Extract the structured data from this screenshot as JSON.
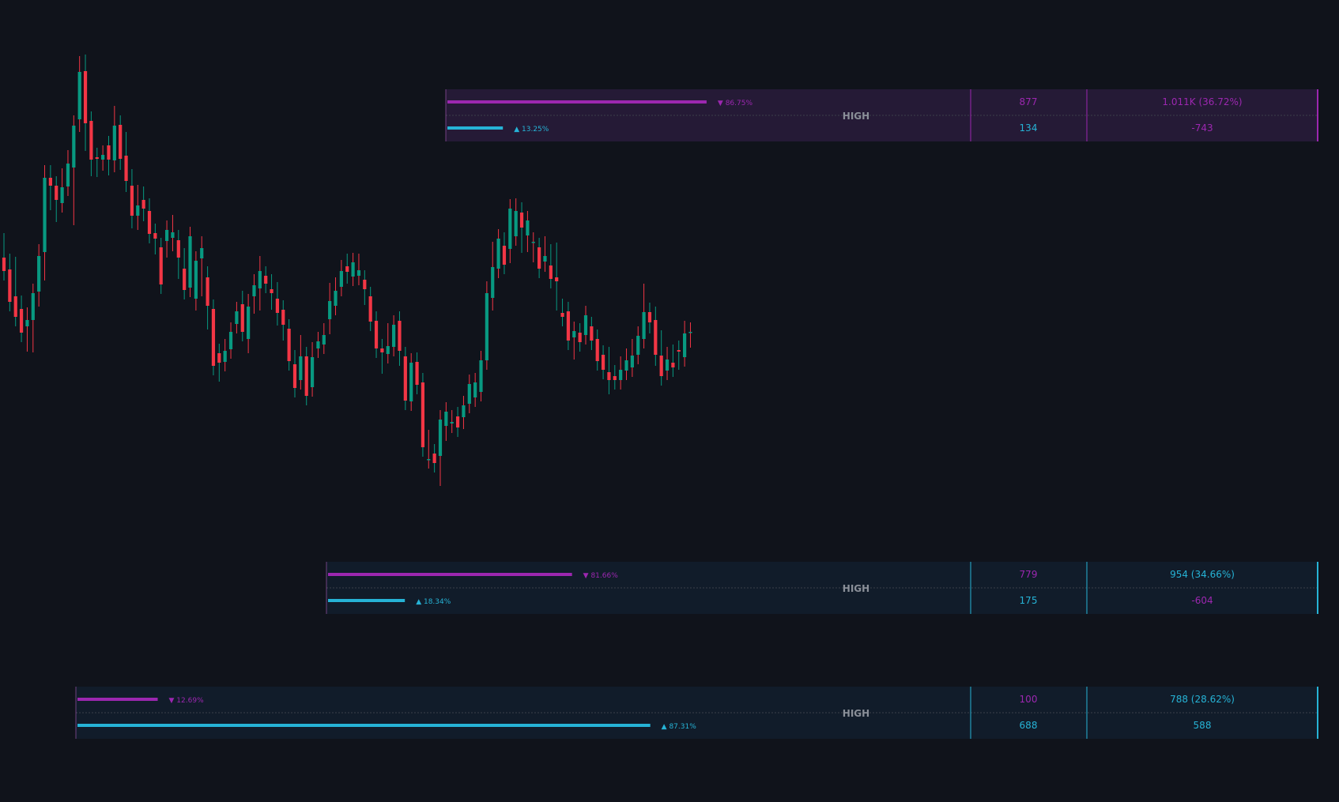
{
  "chart_data": {
    "type": "candlestick",
    "title": "",
    "xlabel": "",
    "ylabel": "",
    "colors": {
      "background": "#10131b",
      "up": "#089981",
      "down": "#f23645",
      "sell": "#9c27b0",
      "buy": "#26b3d6",
      "band_purple": "#251a36",
      "band_blue": "#111c2a",
      "muted_text": "#8a8f98"
    },
    "candles": [
      [
        685,
        668,
        704,
        670
      ],
      [
        670,
        629,
        678,
        634
      ],
      [
        636,
        610,
        674,
        620
      ],
      [
        620,
        590,
        625,
        597
      ],
      [
        598,
        606,
        578,
        610
      ],
      [
        606,
        640,
        577,
        640
      ],
      [
        642,
        687,
        635,
        690
      ],
      [
        692,
        786,
        668,
        790
      ],
      [
        786,
        776,
        790,
        757
      ],
      [
        776,
        758,
        768,
        742
      ],
      [
        754,
        774,
        765,
        786
      ],
      [
        775,
        804,
        778,
        809
      ],
      [
        799,
        852,
        738,
        853
      ],
      [
        860,
        920,
        856,
        928
      ],
      [
        921,
        855,
        930,
        832
      ],
      [
        858,
        809,
        852,
        800
      ],
      [
        812,
        810,
        802,
        799
      ],
      [
        809,
        815,
        807,
        808
      ],
      [
        827,
        809,
        801,
        818
      ],
      [
        808,
        852,
        805,
        865
      ],
      [
        853,
        810,
        851,
        808
      ],
      [
        814,
        782,
        832,
        780
      ],
      [
        776,
        738,
        785,
        734
      ],
      [
        738,
        751,
        732,
        765
      ],
      [
        758,
        747,
        763,
        743
      ],
      [
        744,
        715,
        748,
        722
      ],
      [
        716,
        709,
        701,
        707
      ],
      [
        698,
        651,
        670,
        660
      ],
      [
        706,
        720,
        710,
        697
      ],
      [
        710,
        717,
        727,
        705
      ],
      [
        707,
        685,
        708,
        670
      ],
      [
        671,
        644,
        685,
        668
      ],
      [
        647,
        712,
        673,
        649
      ],
      [
        633,
        681,
        648,
        630
      ],
      [
        684,
        697,
        648,
        700
      ],
      [
        660,
        624,
        606,
        662
      ],
      [
        620,
        548,
        615,
        560
      ],
      [
        564,
        552,
        560,
        540
      ],
      [
        553,
        567,
        570,
        560
      ],
      [
        569,
        591,
        582,
        588
      ],
      [
        601,
        617,
        609,
        612
      ],
      [
        626,
        591,
        631,
        593
      ],
      [
        582,
        623,
        576,
        627
      ],
      [
        636,
        650,
        652,
        626
      ],
      [
        646,
        668,
        630,
        675
      ],
      [
        662,
        652,
        657,
        658
      ],
      [
        645,
        640,
        631,
        652
      ],
      [
        633,
        615,
        611,
        642
      ],
      [
        619,
        600,
        592,
        592
      ],
      [
        595,
        554,
        575,
        556
      ],
      [
        550,
        520,
        556,
        535
      ],
      [
        530,
        560,
        575,
        560
      ],
      [
        560,
        510,
        528,
        515
      ],
      [
        521,
        559,
        525,
        566
      ],
      [
        570,
        579,
        575,
        575
      ],
      [
        575,
        587,
        590,
        585
      ],
      [
        607,
        630,
        600,
        641
      ],
      [
        624,
        643,
        638,
        648
      ],
      [
        648,
        668,
        656,
        670
      ],
      [
        674,
        667,
        664,
        678
      ],
      [
        661,
        679,
        674,
        665
      ],
      [
        662,
        669,
        665,
        678
      ],
      [
        657,
        645,
        637,
        643
      ],
      [
        636,
        604,
        619,
        609
      ],
      [
        605,
        570,
        592,
        580
      ],
      [
        570,
        565,
        550,
        560
      ],
      [
        563,
        573,
        570,
        590
      ],
      [
        572,
        600,
        586,
        598
      ],
      [
        605,
        567,
        565,
        560
      ],
      [
        560,
        504,
        530,
        513
      ],
      [
        503,
        552,
        515,
        552
      ],
      [
        553,
        524,
        526,
        527
      ],
      [
        527,
        445,
        490,
        455
      ],
      [
        430,
        430,
        455,
        453
      ],
      [
        437,
        425,
        433,
        430
      ],
      [
        434,
        480,
        408,
        470
      ],
      [
        472,
        490,
        465,
        470
      ],
      [
        475,
        477,
        477,
        480
      ],
      [
        484,
        470,
        479,
        480
      ],
      [
        483,
        498,
        480,
        490
      ],
      [
        500,
        525,
        500,
        510
      ],
      [
        508,
        527,
        520,
        524
      ],
      [
        515,
        555,
        553,
        550
      ],
      [
        555,
        640,
        643,
        630
      ],
      [
        634,
        673,
        693,
        630
      ],
      [
        671,
        709,
        696,
        690
      ],
      [
        700,
        676,
        688,
        705
      ],
      [
        696,
        747,
        710,
        690
      ],
      [
        712,
        744,
        723,
        748
      ],
      [
        742,
        723,
        743,
        703
      ],
      [
        713,
        732,
        720,
        704
      ],
      [
        704,
        705,
        691,
        700
      ],
      [
        698,
        671,
        680,
        672
      ],
      [
        680,
        687,
        700,
        679
      ],
      [
        675,
        658,
        690,
        660
      ],
      [
        660,
        655,
        692,
        630
      ],
      [
        615,
        610,
        621,
        617
      ],
      [
        617,
        580,
        600,
        583
      ],
      [
        584,
        592,
        568,
        590
      ],
      [
        590,
        578,
        583,
        582
      ],
      [
        587,
        612,
        596,
        600
      ],
      [
        598,
        580,
        595,
        590
      ],
      [
        582,
        554,
        565,
        560
      ],
      [
        562,
        543,
        550,
        551
      ],
      [
        540,
        530,
        560,
        524
      ],
      [
        535,
        530,
        537,
        532
      ],
      [
        530,
        543,
        548,
        542
      ],
      [
        542,
        555,
        557,
        558
      ],
      [
        546,
        561,
        559,
        570
      ],
      [
        562,
        586,
        582,
        570
      ],
      [
        582,
        616,
        640,
        610
      ],
      [
        616,
        603,
        610,
        601
      ],
      [
        606,
        562,
        611,
        560
      ],
      [
        561,
        535,
        581,
        536
      ],
      [
        542,
        556,
        557,
        560
      ],
      [
        552,
        546,
        563,
        562
      ],
      [
        568,
        566,
        555,
        560
      ],
      [
        559,
        589,
        564,
        593
      ],
      [
        590,
        591,
        583,
        590
      ]
    ],
    "levels": [
      {
        "band_color": "purple",
        "label": "HIGH",
        "sell_pct": "▼ 86.75%",
        "buy_pct": "▲ 13.25%",
        "sell_volume": "877",
        "buy_volume": "134",
        "total": "1.011K (36.72%)",
        "delta": "-743",
        "sell_share": 0.8675,
        "buy_share": 0.1325
      },
      {
        "band_color": "blue",
        "label": "HIGH",
        "sell_pct": "▼ 81.66%",
        "buy_pct": "▲ 18.34%",
        "sell_volume": "779",
        "buy_volume": "175",
        "total": "954 (34.66%)",
        "delta": "-604",
        "sell_share": 0.8166,
        "buy_share": 0.1834
      },
      {
        "band_color": "blue",
        "label": "HIGH",
        "sell_pct": "▼ 12.69%",
        "buy_pct": "▲ 87.31%",
        "sell_volume": "100",
        "buy_volume": "688",
        "total": "788 (28.62%)",
        "delta": "588",
        "sell_share": 0.1269,
        "buy_share": 0.8731
      }
    ]
  }
}
